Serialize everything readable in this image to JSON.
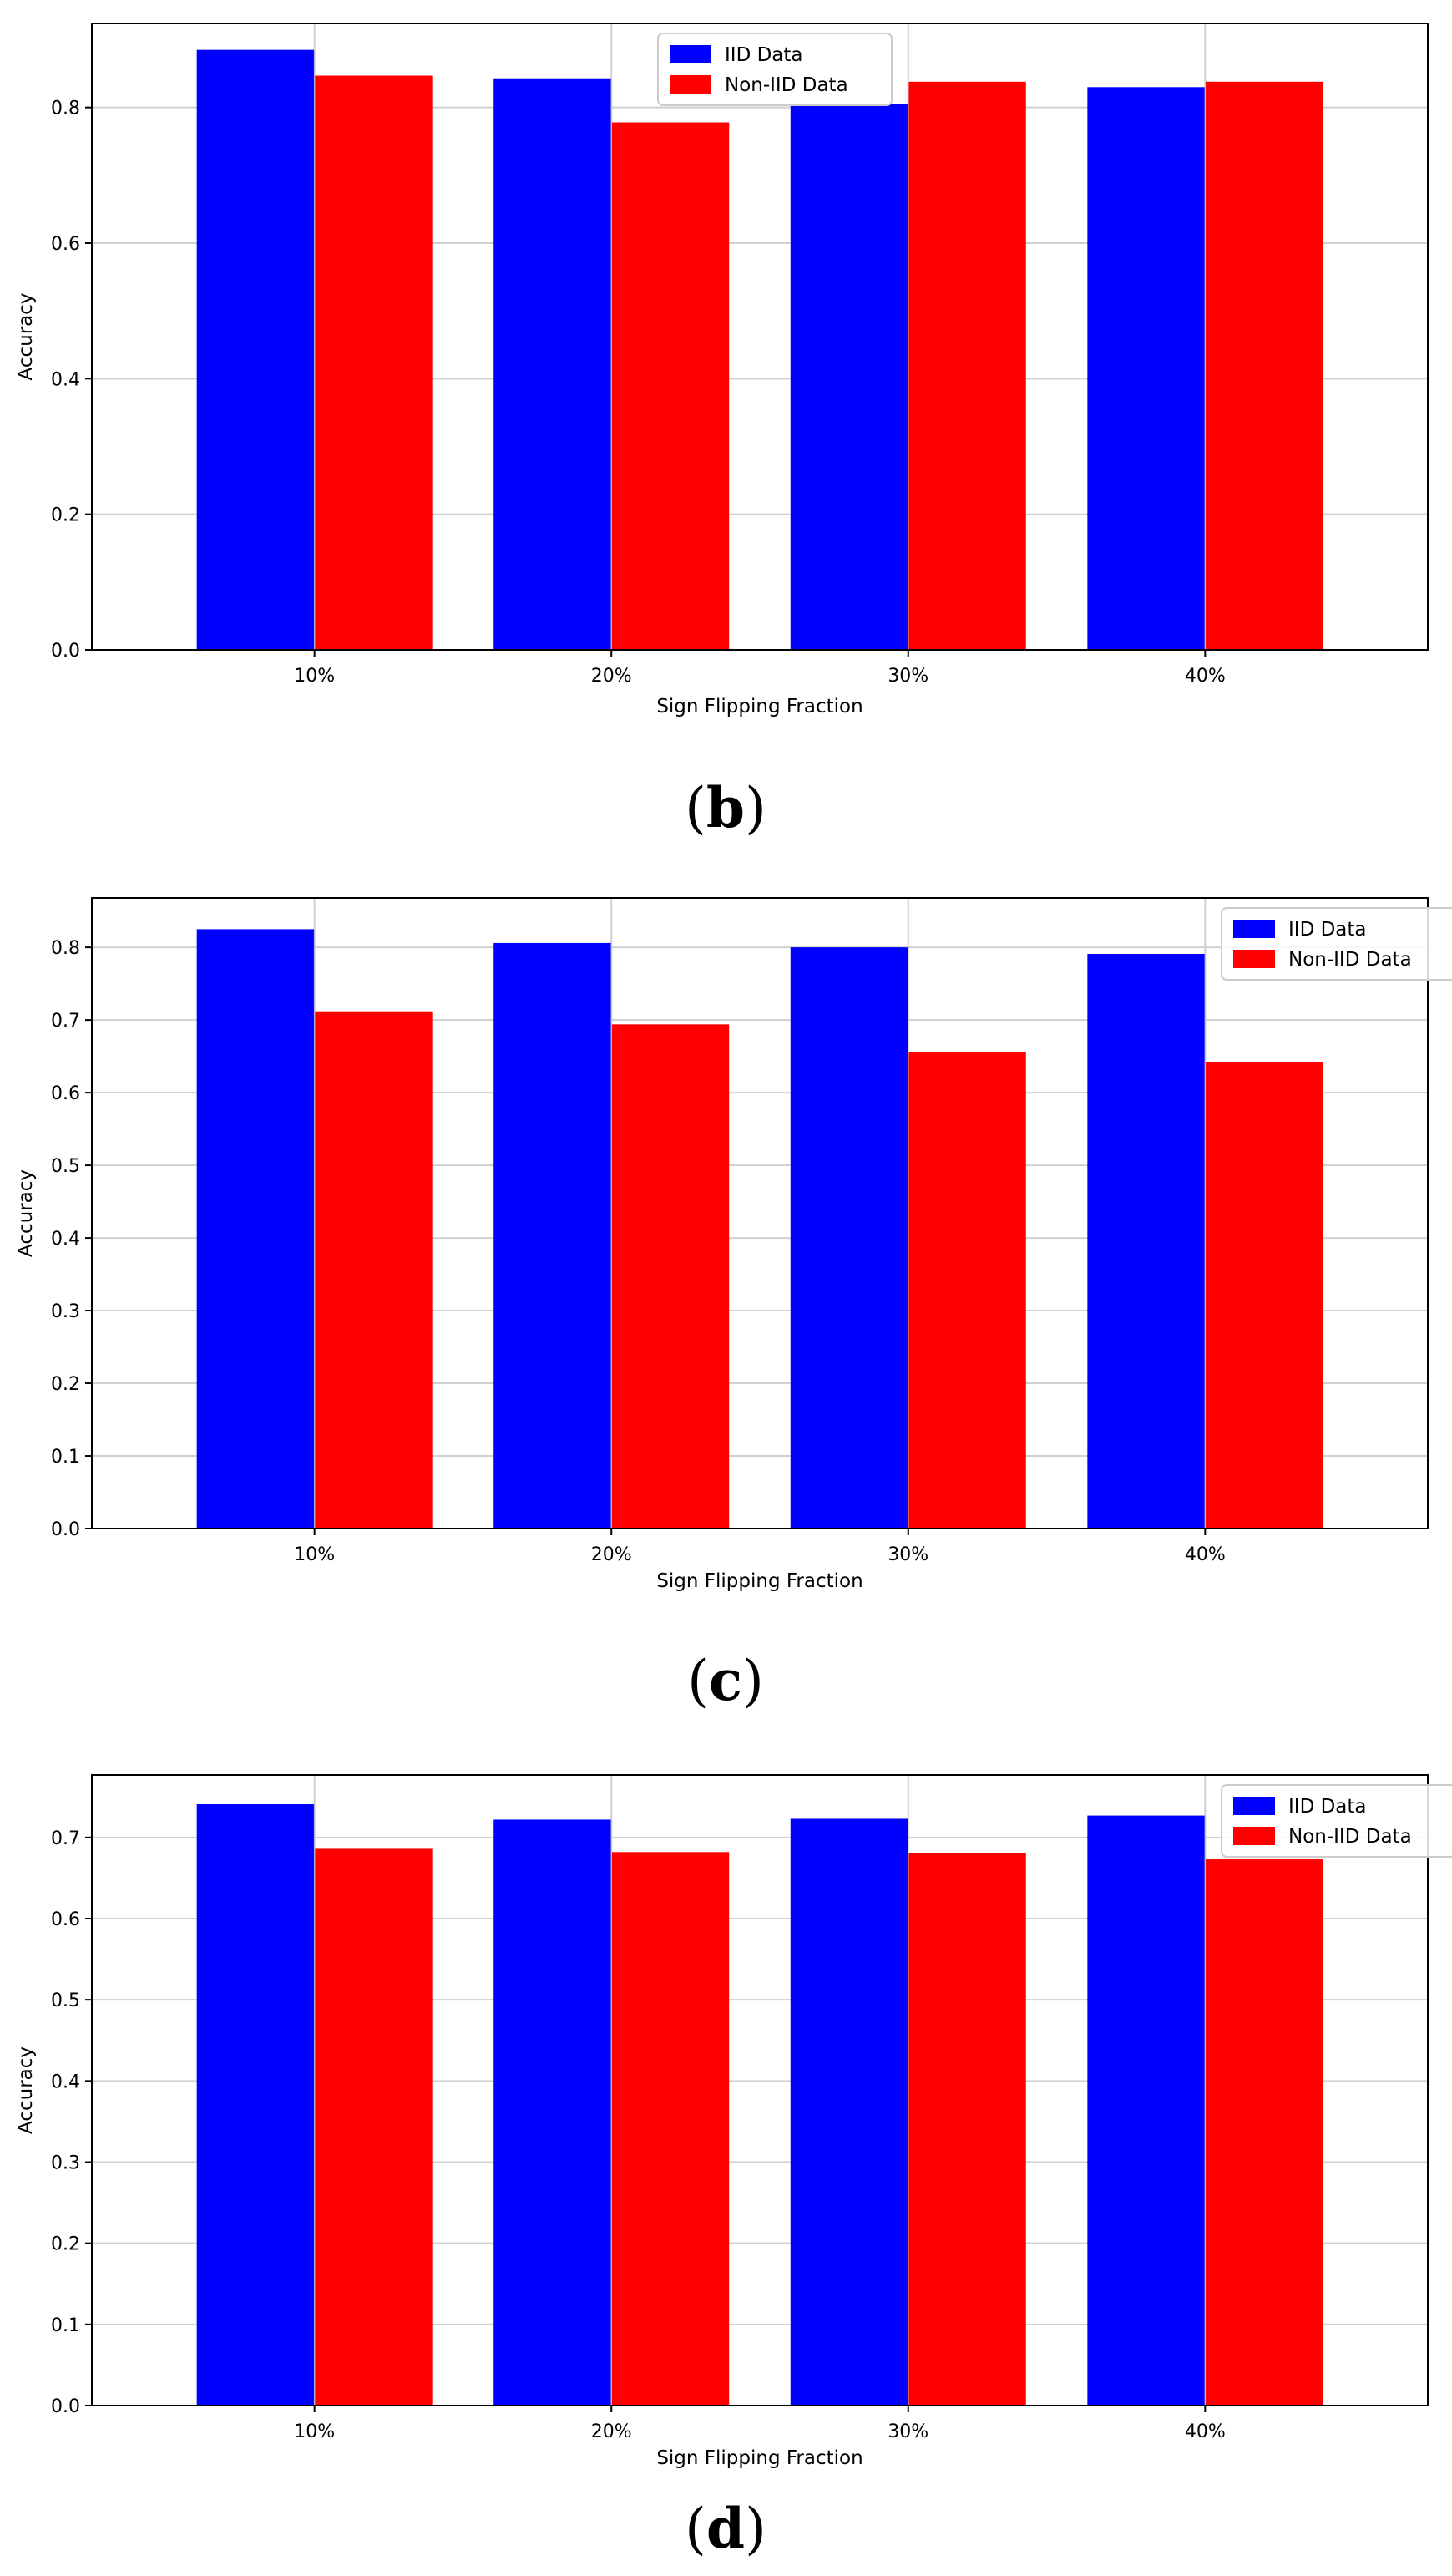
{
  "colors": {
    "iid": "#0000ff",
    "noniid": "#ff0000",
    "grid": "#d0d0d0",
    "axis": "#000000"
  },
  "chart_data": [
    {
      "id": "b",
      "type": "bar",
      "panel_label": "b",
      "categories": [
        "10%",
        "20%",
        "30%",
        "40%"
      ],
      "series": [
        {
          "name": "IID Data",
          "values": [
            0.885,
            0.843,
            0.805,
            0.83
          ]
        },
        {
          "name": "Non-IID Data",
          "values": [
            0.847,
            0.778,
            0.838,
            0.838
          ]
        }
      ],
      "xlabel": "Sign Flipping Fraction",
      "ylabel": "Accuracy",
      "ylim": [
        0,
        0.924
      ],
      "yticks": [
        0.0,
        0.2,
        0.4,
        0.6,
        0.8
      ],
      "ytick_labels": [
        "0.0",
        "0.2",
        "0.4",
        "0.6",
        "0.8"
      ],
      "grid": true,
      "legend": "top-center"
    },
    {
      "id": "c",
      "type": "bar",
      "panel_label": "c",
      "categories": [
        "10%",
        "20%",
        "30%",
        "40%"
      ],
      "series": [
        {
          "name": "IID Data",
          "values": [
            0.825,
            0.806,
            0.8,
            0.791
          ]
        },
        {
          "name": "Non-IID Data",
          "values": [
            0.712,
            0.694,
            0.656,
            0.642
          ]
        }
      ],
      "xlabel": "Sign Flipping Fraction",
      "ylabel": "Accuracy",
      "ylim": [
        0,
        0.868
      ],
      "yticks": [
        0.0,
        0.1,
        0.2,
        0.3,
        0.4,
        0.5,
        0.6,
        0.7,
        0.8
      ],
      "ytick_labels": [
        "0.0",
        "0.1",
        "0.2",
        "0.3",
        "0.4",
        "0.5",
        "0.6",
        "0.7",
        "0.8"
      ],
      "grid": true,
      "legend": "top-right"
    },
    {
      "id": "d",
      "type": "bar",
      "panel_label": "d",
      "categories": [
        "10%",
        "20%",
        "30%",
        "40%"
      ],
      "series": [
        {
          "name": "IID Data",
          "values": [
            0.741,
            0.722,
            0.723,
            0.727
          ]
        },
        {
          "name": "Non-IID Data",
          "values": [
            0.686,
            0.682,
            0.681,
            0.673
          ]
        }
      ],
      "xlabel": "Sign Flipping Fraction",
      "ylabel": "Accuracy",
      "ylim": [
        0,
        0.777
      ],
      "yticks": [
        0.0,
        0.1,
        0.2,
        0.3,
        0.4,
        0.5,
        0.6,
        0.7
      ],
      "ytick_labels": [
        "0.0",
        "0.1",
        "0.2",
        "0.3",
        "0.4",
        "0.5",
        "0.6",
        "0.7"
      ],
      "grid": true,
      "legend": "top-right"
    }
  ]
}
